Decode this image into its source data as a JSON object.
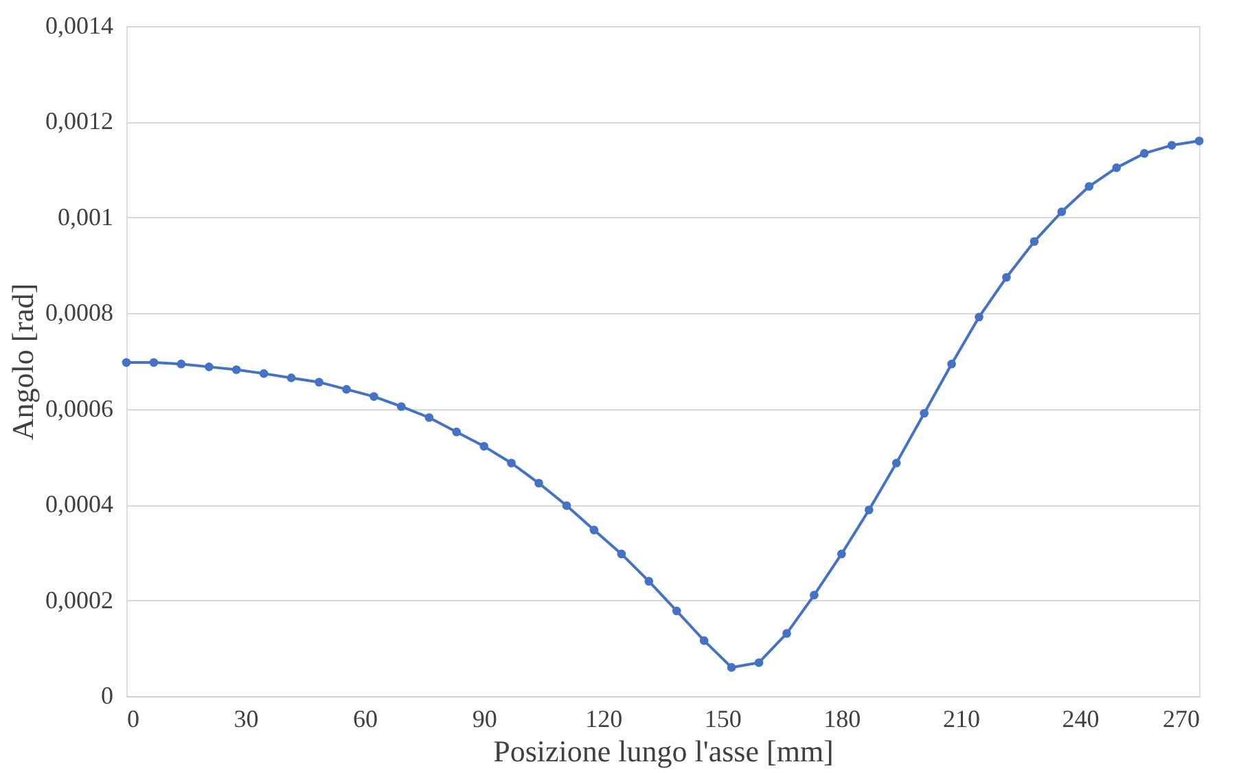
{
  "chart_data": {
    "type": "line",
    "xlabel": "Posizione lungo l'asse [mm]",
    "ylabel": "Angolo [rad]",
    "x": [
      0,
      6.9,
      13.8,
      20.8,
      27.7,
      34.6,
      41.5,
      48.5,
      55.4,
      62.3,
      69.2,
      76.2,
      83.1,
      90,
      96.9,
      103.8,
      110.8,
      117.7,
      124.6,
      131.5,
      138.5,
      145.4,
      152.3,
      159.2,
      166.2,
      173.1,
      180,
      186.9,
      193.8,
      200.8,
      207.7,
      214.6,
      221.5,
      228.5,
      235.4,
      242.3,
      249.2,
      256.2,
      263.1,
      270
    ],
    "series": [
      {
        "color": "#4472c4",
        "values": [
          0.000697,
          0.000697,
          0.000694,
          0.000688,
          0.000682,
          0.000674,
          0.000665,
          0.000656,
          0.000641,
          0.000626,
          0.000605,
          0.000582,
          0.000552,
          0.000522,
          0.000487,
          0.000445,
          0.000398,
          0.000347,
          0.000297,
          0.00024,
          0.000178,
          0.000116,
          6e-05,
          7e-05,
          0.000131,
          0.000211,
          0.000297,
          0.000389,
          0.000487,
          0.000591,
          0.000694,
          0.000792,
          0.000875,
          0.00095,
          0.001012,
          0.001065,
          0.001104,
          0.001134,
          0.001151,
          0.00116
        ]
      }
    ],
    "xlim": [
      0,
      270
    ],
    "xticks": [
      0,
      30,
      60,
      90,
      120,
      150,
      180,
      210,
      240,
      270
    ],
    "ylim": [
      0,
      0.0014
    ],
    "yticks": [
      0,
      {
        "value": 0.0002,
        "label": "0,0002"
      },
      {
        "value": 0.0004,
        "label": "0,0004"
      },
      {
        "value": 0.0006,
        "label": "0,0006"
      },
      {
        "value": 0.0008,
        "label": "0,0008"
      },
      {
        "value": 0.001,
        "label": "0,001"
      },
      {
        "value": 0.0012,
        "label": "0,0012"
      },
      {
        "value": 0.0014,
        "label": "0,0014"
      }
    ],
    "grid": "y",
    "marker": "circle",
    "line_style": "solid"
  }
}
